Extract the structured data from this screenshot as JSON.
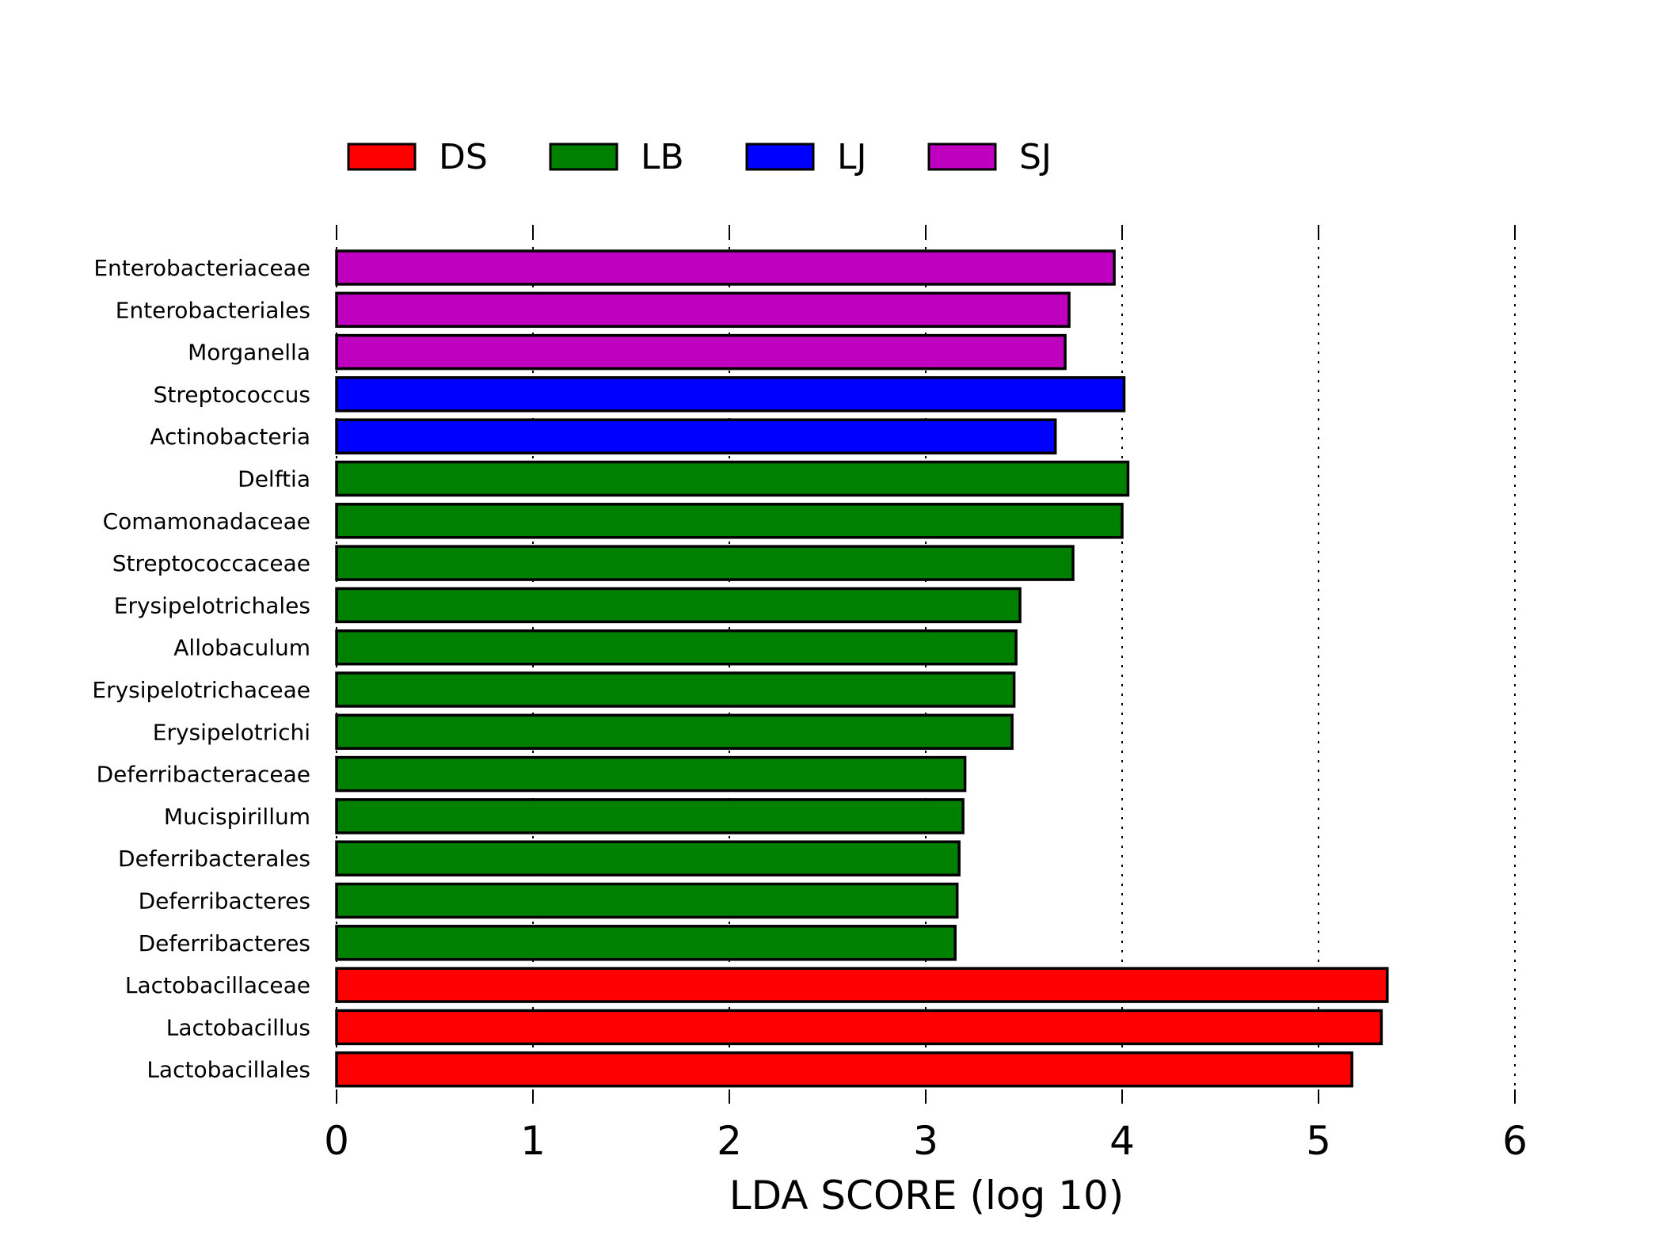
{
  "chart_data": {
    "type": "bar",
    "orientation": "horizontal",
    "xlabel": "LDA SCORE (log 10)",
    "xlim": [
      0,
      6
    ],
    "xticks": [
      "0",
      "1",
      "2",
      "3",
      "4",
      "5",
      "6"
    ],
    "grid": "vertical dotted",
    "legend_position": "top",
    "legend": [
      {
        "name": "DS",
        "color": "#ff0000"
      },
      {
        "name": "LB",
        "color": "#008000"
      },
      {
        "name": "LJ",
        "color": "#0000ff"
      },
      {
        "name": "SJ",
        "color": "#bf00bf"
      }
    ],
    "bars": [
      {
        "label": "Enterobacteriaceae",
        "value": 3.96,
        "group": "SJ"
      },
      {
        "label": "Enterobacteriales",
        "value": 3.73,
        "group": "SJ"
      },
      {
        "label": "Morganella",
        "value": 3.71,
        "group": "SJ"
      },
      {
        "label": "Streptococcus",
        "value": 4.01,
        "group": "LJ"
      },
      {
        "label": "Actinobacteria",
        "value": 3.66,
        "group": "LJ"
      },
      {
        "label": "Delftia",
        "value": 4.03,
        "group": "LB"
      },
      {
        "label": "Comamonadaceae",
        "value": 4.0,
        "group": "LB"
      },
      {
        "label": "Streptococcaceae",
        "value": 3.75,
        "group": "LB"
      },
      {
        "label": "Erysipelotrichales",
        "value": 3.48,
        "group": "LB"
      },
      {
        "label": "Allobaculum",
        "value": 3.46,
        "group": "LB"
      },
      {
        "label": "Erysipelotrichaceae",
        "value": 3.45,
        "group": "LB"
      },
      {
        "label": "Erysipelotrichi",
        "value": 3.44,
        "group": "LB"
      },
      {
        "label": "Deferribacteraceae",
        "value": 3.2,
        "group": "LB"
      },
      {
        "label": "Mucispirillum",
        "value": 3.19,
        "group": "LB"
      },
      {
        "label": "Deferribacterales",
        "value": 3.17,
        "group": "LB"
      },
      {
        "label": "Deferribacteres",
        "value": 3.16,
        "group": "LB"
      },
      {
        "label": "Deferribacteres",
        "value": 3.15,
        "group": "LB"
      },
      {
        "label": "Lactobacillaceae",
        "value": 5.35,
        "group": "DS"
      },
      {
        "label": "Lactobacillus",
        "value": 5.32,
        "group": "DS"
      },
      {
        "label": "Lactobacillales",
        "value": 5.17,
        "group": "DS"
      }
    ]
  }
}
